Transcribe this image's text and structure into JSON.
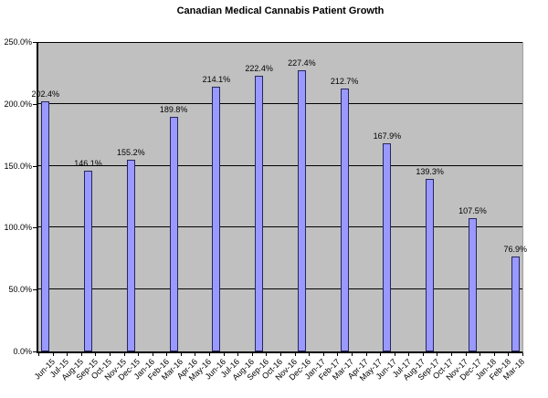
{
  "chart_data": {
    "type": "bar",
    "title": "Canadian Medical Cannabis Patient Growth",
    "xlabel": "",
    "ylabel": "",
    "categories": [
      "Jun-15",
      "Jul-15",
      "Aug-15",
      "Sep-15",
      "Oct-15",
      "Nov-15",
      "Dec-15",
      "Jan-16",
      "Feb-16",
      "Mar-16",
      "Apr-16",
      "May-16",
      "Jun-16",
      "Jul-16",
      "Aug-16",
      "Sep-16",
      "Oct-16",
      "Nov-16",
      "Dec-16",
      "Jan-17",
      "Feb-17",
      "Mar-17",
      "Apr-17",
      "May-17",
      "Jun-17",
      "Jul-17",
      "Aug-17",
      "Sep-17",
      "Oct-17",
      "Nov-17",
      "Dec-17",
      "Jan-18",
      "Feb-18",
      "Mar-18"
    ],
    "bars": [
      {
        "category": "Jun-15",
        "value": 202.4,
        "label": "202.4%"
      },
      {
        "category": "Sep-15",
        "value": 146.1,
        "label": "146.1%"
      },
      {
        "category": "Dec-15",
        "value": 155.2,
        "label": "155.2%"
      },
      {
        "category": "Mar-16",
        "value": 189.8,
        "label": "189.8%"
      },
      {
        "category": "Jun-16",
        "value": 214.1,
        "label": "214.1%"
      },
      {
        "category": "Sep-16",
        "value": 222.4,
        "label": "222.4%"
      },
      {
        "category": "Dec-16",
        "value": 227.4,
        "label": "227.4%"
      },
      {
        "category": "Mar-17",
        "value": 212.7,
        "label": "212.7%"
      },
      {
        "category": "Jun-17",
        "value": 167.9,
        "label": "167.9%"
      },
      {
        "category": "Sep-17",
        "value": 139.3,
        "label": "139.3%"
      },
      {
        "category": "Dec-17",
        "value": 107.5,
        "label": "107.5%"
      },
      {
        "category": "Mar-18",
        "value": 76.9,
        "label": "76.9%"
      }
    ],
    "y_axis": {
      "min": 0,
      "max": 250,
      "step": 50,
      "tick_labels": [
        "0.0%",
        "50.0%",
        "100.0%",
        "150.0%",
        "200.0%",
        "250.0%"
      ]
    },
    "grid": true,
    "legend": "none",
    "colors": {
      "bar_fill": "#9999FF",
      "bar_border": "#26265e",
      "plot_bg": "#C0C0C0",
      "gridline": "#000000",
      "axis": "#000000",
      "text": "#000000",
      "background": "#FFFFFF"
    }
  }
}
